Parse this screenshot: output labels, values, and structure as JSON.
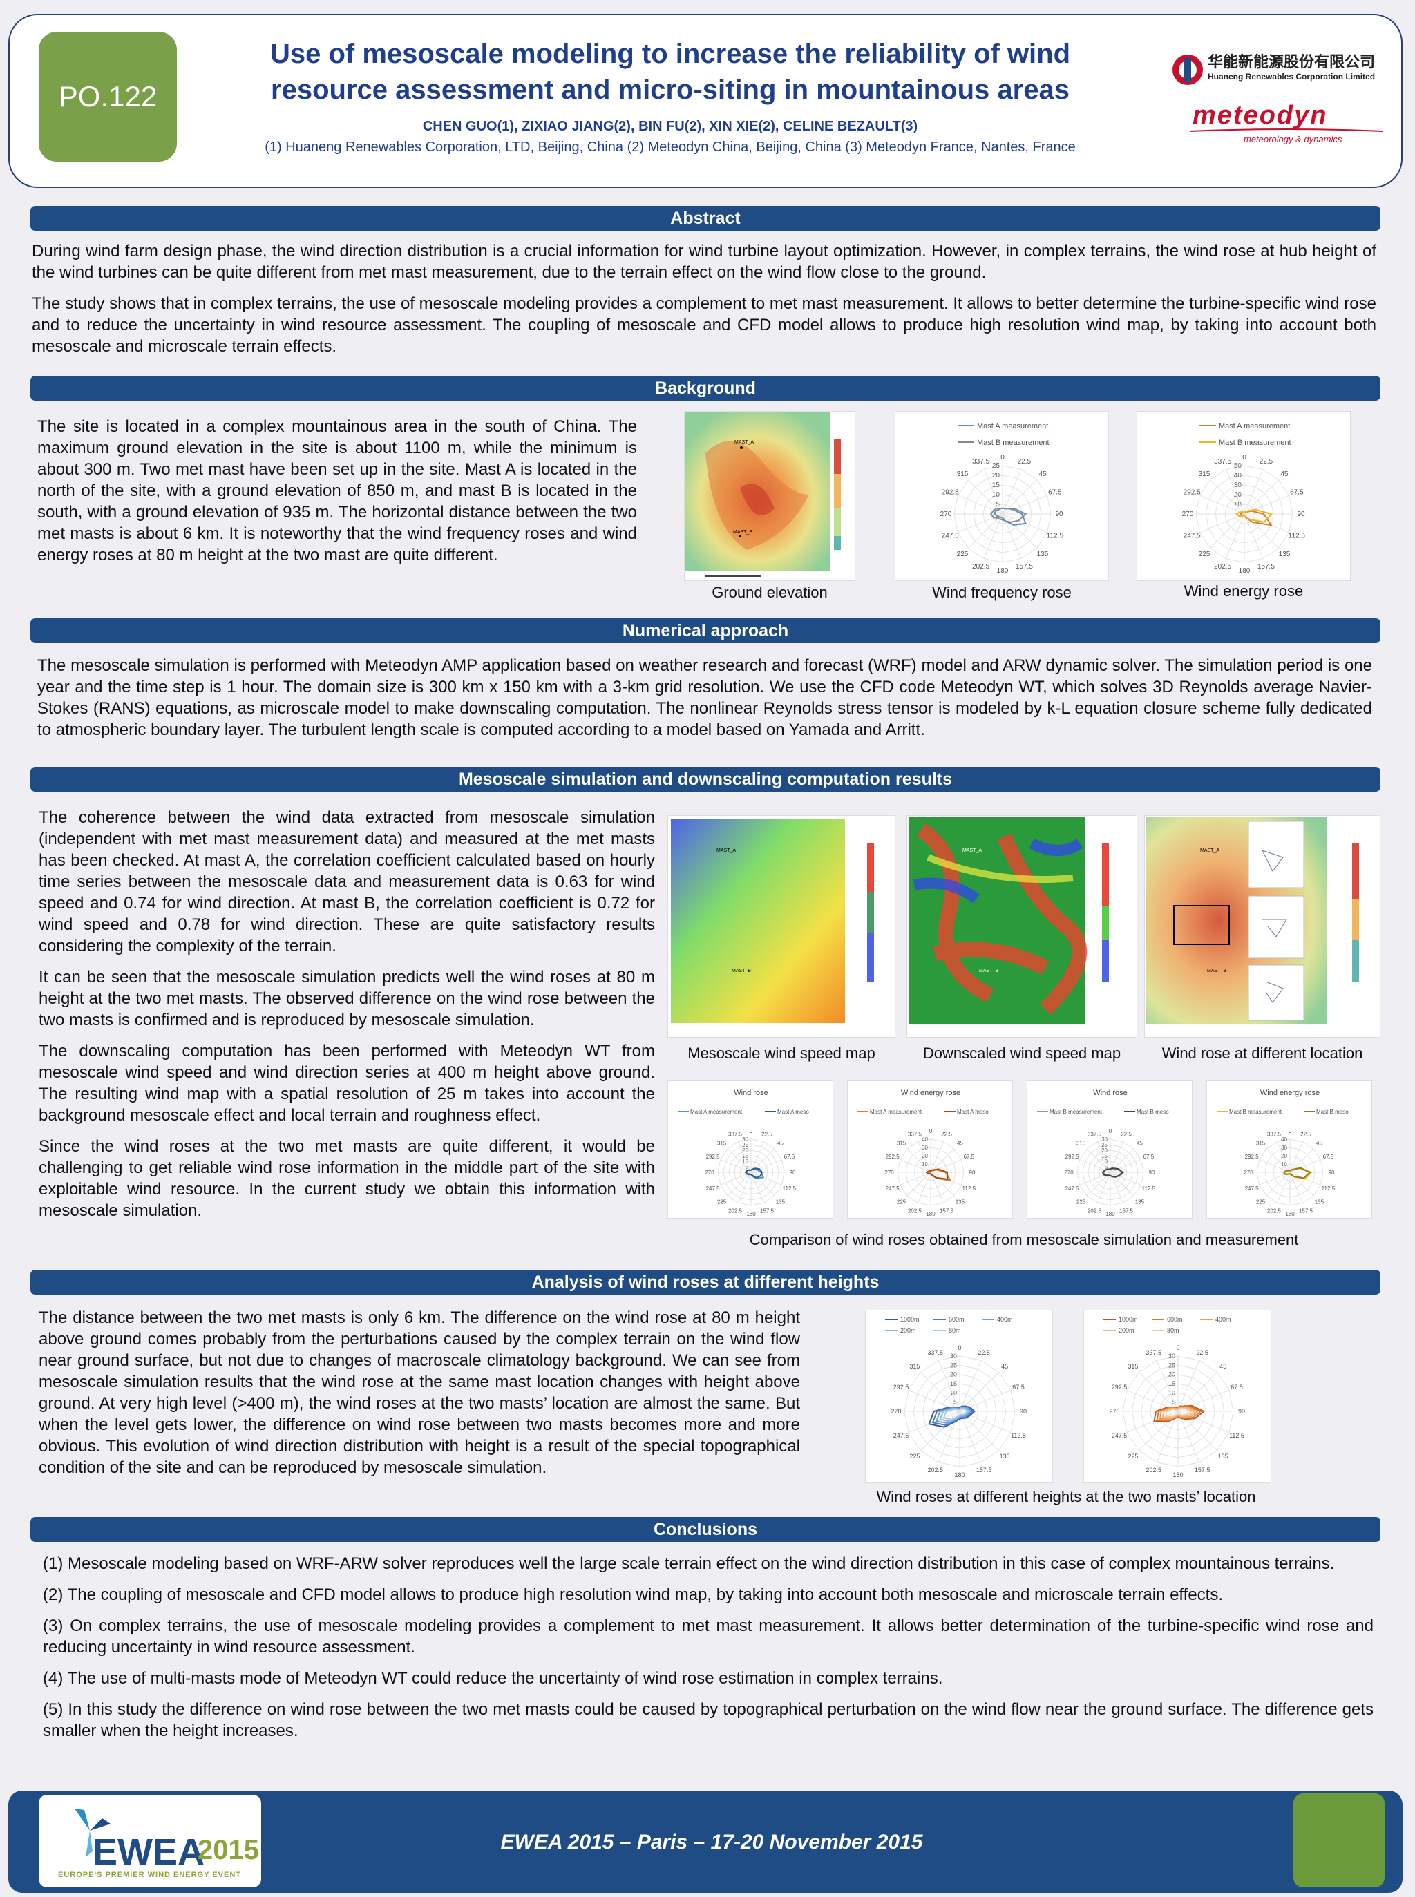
{
  "header": {
    "poster_id": "PO.122",
    "title_line1": "Use of mesoscale modeling to increase the reliability of wind",
    "title_line2": "resource assessment and micro-siting in mountainous areas",
    "authors": "CHEN GUO(1),  ZIXIAO JIANG(2), BIN FU(2), XIN XIE(2), CELINE BEZAULT(3)",
    "affiliations": "(1) Huaneng Renewables Corporation, LTD, Beijing, China (2) Meteodyn China, Beijing, China (3) Meteodyn France, Nantes, France",
    "logo_cn": "华能新能源股份有限公司",
    "logo_en": "Huaneng Renewables Corporation Limited",
    "logo_meteodyn": "meteodyn",
    "logo_meteodyn_tag": "meteorology & dynamics"
  },
  "sections": {
    "abstract": {
      "heading": "Abstract",
      "p1": "During wind farm design phase, the wind direction distribution is a crucial information for wind turbine layout optimization. However, in complex terrains, the wind rose at hub height of the wind turbines can be quite different from met mast measurement, due to the terrain effect on the wind flow close to the ground.",
      "p2": "The study shows that in complex terrains, the use of mesoscale modeling provides a complement to met mast measurement. It allows to better determine the turbine-specific wind rose and to reduce the uncertainty in wind resource assessment. The coupling of mesoscale and CFD model allows to produce high resolution wind map, by taking into account both mesoscale and microscale terrain effects."
    },
    "background": {
      "heading": "Background",
      "p1": "The site is located in a complex mountainous area in the south of China. The maximum ground elevation in the site is about 1100 m, while the minimum is about 300 m. Two met mast have been set up in the site. Mast A is located in the north of the site, with a ground elevation of 850 m, and mast B is located in the south, with a ground elevation of 935 m. The horizontal distance between the two met masts is about 6 km. It is noteworthy that the wind frequency roses and wind energy roses at 80 m height at the two mast are quite different.",
      "cap1": "Ground elevation",
      "cap2": "Wind frequency rose",
      "cap3": "Wind energy rose",
      "legendA1": "Mast A measurement",
      "legendB1": "Mast B measurement",
      "legendA2": "Mast A measurement",
      "legendB2": "Mast B measurement",
      "mastA": "MAST_A",
      "mastB": "MAST_B"
    },
    "numerical": {
      "heading": "Numerical approach",
      "p1": "The mesoscale simulation is performed with Meteodyn AMP application based on weather research and forecast (WRF) model and ARW dynamic solver. The simulation period is one year and the time step is 1 hour. The domain size is 300 km x 150 km with a 3-km grid resolution. We use the CFD code Meteodyn WT, which solves 3D Reynolds average Navier-Stokes (RANS) equations, as microscale model to make downscaling computation. The nonlinear Reynolds stress tensor is modeled by k-L equation closure scheme fully dedicated to atmospheric boundary layer. The turbulent length scale is computed according to a model based on Yamada and Arritt."
    },
    "mesoscale": {
      "heading": "Mesoscale simulation and downscaling computation results",
      "p1": "The coherence between the wind data extracted from mesoscale simulation (independent with met mast measurement data) and measured at the met masts has been checked. At mast A, the correlation coefficient calculated based on hourly time series between the mesoscale data and measurement data is 0.63 for wind speed and 0.74 for wind direction. At mast B, the correlation coefficient is 0.72 for wind speed and 0.78 for wind direction. These are quite satisfactory results considering the complexity of the terrain.",
      "p2": "It can be seen that the mesoscale simulation predicts well the wind roses at 80 m height at the two met masts. The observed difference on the wind rose between the two masts is confirmed and is reproduced by mesoscale simulation.",
      "p3": "The downscaling computation has been performed with Meteodyn WT from mesoscale wind speed and wind direction series at 400 m height above ground. The resulting wind map with a spatial resolution of 25 m takes into account the background mesoscale effect and local terrain and roughness effect.",
      "p4": "Since the wind roses at the two met masts are quite different, it would be challenging to get reliable wind rose information in the middle part of the site with exploitable wind resource. In the current study we obtain this information with mesoscale simulation.",
      "cap1": "Mesoscale wind speed map",
      "cap2": "Downscaled wind speed map",
      "cap3": "Wind rose at different location",
      "cap4": "Comparison of wind roses obtained from mesoscale simulation and measurement",
      "rose_titles": [
        "Wind rose",
        "Wind energy rose",
        "Wind rose",
        "Wind energy rose"
      ],
      "rose_legends": [
        [
          "Mast A measurement",
          "Mast A meso"
        ],
        [
          "Mast A measurement",
          "Mast A meso"
        ],
        [
          "Mast B measurement",
          "Mast B meso"
        ],
        [
          "Mast B measurement",
          "Mast B meso"
        ]
      ],
      "mastA": "MAST_A",
      "mastB": "MAST_B"
    },
    "heights": {
      "heading": "Analysis of wind roses at different heights",
      "p1": "The distance between the two met masts is only 6 km. The difference on the wind rose at 80 m height above ground comes probably from the perturbations caused by the complex terrain on the wind flow near ground surface, but not due to changes of macroscale climatology background. We can see from mesoscale simulation results that the wind rose at the same mast location changes with height above ground. At very high level (>400 m), the wind roses at the two masts’ location are almost the same. But when the level gets lower, the difference on wind rose between two masts becomes more and more obvious. This evolution of wind direction distribution with height is a result of the special topographical condition of the site and can be reproduced by mesoscale simulation.",
      "cap1": "Wind roses at different heights at the two masts’ location",
      "legend": [
        "1000m",
        "600m",
        "400m",
        "200m",
        "80m"
      ]
    },
    "conclusions": {
      "heading": "Conclusions",
      "c1": "(1) Mesoscale modeling based on WRF-ARW solver reproduces well the large scale terrain effect on the wind direction distribution in this case of complex mountainous terrains.",
      "c2": "(2) The coupling of mesoscale and CFD model allows to produce high resolution wind map, by taking into account both mesoscale and microscale terrain effects.",
      "c3": "(3) On complex terrains, the use of mesoscale modeling provides a complement to met mast measurement. It allows better determination of the turbine-specific wind rose and reducing uncertainty in wind resource assessment.",
      "c4": "(4) The use of multi-masts mode of Meteodyn WT could reduce the uncertainty of wind rose estimation in complex terrains.",
      "c5": "(5) In this study the difference on wind rose between the two met masts could be caused by topographical perturbation on the wind flow near the ground surface. The difference gets smaller when the height increases."
    }
  },
  "footer": {
    "event": "EWEA 2015 – Paris – 17-20 November 2015",
    "logo_text": "EWEA",
    "logo_year": "2015",
    "logo_sub": "EUROPE'S PREMIER WIND ENERGY EVENT"
  },
  "chart_data": [
    {
      "type": "radar",
      "title": "Wind frequency rose",
      "directions": [
        "0",
        "22.5",
        "45",
        "67.5",
        "90",
        "112.5",
        "135",
        "157.5",
        "180",
        "202.5",
        "225",
        "247.5",
        "270",
        "292.5",
        "315",
        "337.5"
      ],
      "rlabels": [
        "5",
        "10",
        "15",
        "20",
        "25"
      ],
      "series": [
        {
          "name": "Mast A measurement",
          "color": "#5b8fc8",
          "values": [
            3,
            3,
            4,
            6,
            10,
            13,
            8,
            4,
            2,
            2,
            2,
            3,
            4,
            4,
            3,
            3
          ]
        },
        {
          "name": "Mast B measurement",
          "color": "#8a8a8a",
          "values": [
            3,
            3,
            4,
            7,
            12,
            9,
            6,
            4,
            3,
            3,
            3,
            5,
            6,
            5,
            4,
            3
          ]
        }
      ]
    },
    {
      "type": "radar",
      "title": "Wind energy rose",
      "directions": [
        "0",
        "22.5",
        "45",
        "67.5",
        "90",
        "112.5",
        "135",
        "157.5",
        "180",
        "202.5",
        "225",
        "247.5",
        "270",
        "292.5",
        "315",
        "337.5"
      ],
      "rlabels": [
        "10",
        "20",
        "30",
        "40",
        "50"
      ],
      "series": [
        {
          "name": "Mast A measurement",
          "color": "#e07b2a",
          "values": [
            2,
            2,
            3,
            8,
            20,
            30,
            12,
            4,
            2,
            1,
            2,
            3,
            4,
            3,
            2,
            2
          ]
        },
        {
          "name": "Mast B measurement",
          "color": "#e8b820",
          "values": [
            2,
            2,
            4,
            12,
            28,
            22,
            8,
            3,
            2,
            2,
            3,
            6,
            8,
            5,
            3,
            2
          ]
        }
      ]
    }
  ]
}
